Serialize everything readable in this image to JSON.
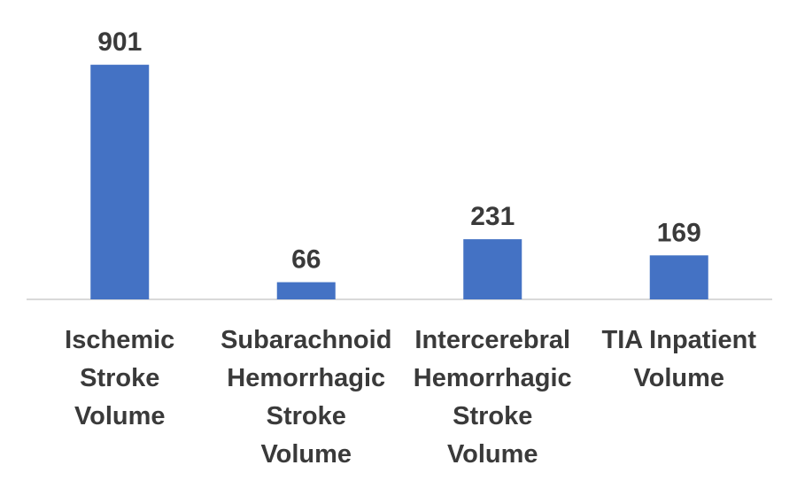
{
  "chart_data": {
    "type": "bar",
    "categories": [
      [
        "Ischemic",
        "Stroke",
        "Volume"
      ],
      [
        "Subarachnoid",
        "Hemorrhagic",
        "Stroke",
        "Volume"
      ],
      [
        "Intercerebral",
        "Hemorrhagic",
        "Stroke",
        "Volume"
      ],
      [
        "TIA Inpatient",
        "Volume"
      ]
    ],
    "values": [
      901,
      66,
      231,
      169
    ],
    "data_labels": [
      "901",
      "66",
      "231",
      "169"
    ],
    "bar_color": "#4472C4",
    "axis_color": "#D9D9D9",
    "text_color": "#3A3A3A",
    "title": "",
    "xlabel": "",
    "ylabel": "",
    "ylim": [
      0,
      1000
    ],
    "grid": false,
    "legend": "none"
  }
}
